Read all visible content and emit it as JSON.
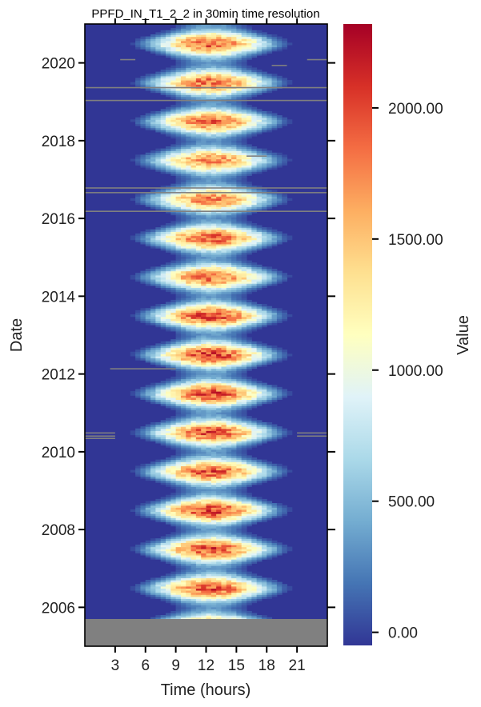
{
  "chart_data": {
    "type": "heatmap",
    "title": "PPFD_IN_T1_2_2 in 30min time resolution",
    "xlabel": "Time (hours)",
    "ylabel": "Date",
    "x_range": [
      0,
      24
    ],
    "x_ticks": [
      3,
      6,
      9,
      12,
      15,
      18,
      21
    ],
    "x_tick_labels": [
      "3",
      "6",
      "9",
      "12",
      "15",
      "18",
      "21"
    ],
    "y_range": [
      2005.0,
      2021.0
    ],
    "y_ticks": [
      2006,
      2008,
      2010,
      2012,
      2014,
      2016,
      2018,
      2020
    ],
    "y_tick_labels": [
      "2006",
      "2008",
      "2010",
      "2012",
      "2014",
      "2016",
      "2018",
      "2020"
    ],
    "missing_data_until": 2005.7,
    "yearly_peak_values": [
      {
        "year": 2006,
        "peak": 2100
      },
      {
        "year": 2007,
        "peak": 2150
      },
      {
        "year": 2008,
        "peak": 2200
      },
      {
        "year": 2009,
        "peak": 2100
      },
      {
        "year": 2010,
        "peak": 2100
      },
      {
        "year": 2011,
        "peak": 2150
      },
      {
        "year": 2012,
        "peak": 2200
      },
      {
        "year": 2013,
        "peak": 2150
      },
      {
        "year": 2014,
        "peak": 2000
      },
      {
        "year": 2015,
        "peak": 2100
      },
      {
        "year": 2016,
        "peak": 1900
      },
      {
        "year": 2017,
        "peak": 1850
      },
      {
        "year": 2018,
        "peak": 2000
      },
      {
        "year": 2019,
        "peak": 2000
      },
      {
        "year": 2020,
        "peak": 2050
      }
    ],
    "colorbar": {
      "label": "Value",
      "range": [
        -50,
        2320
      ],
      "ticks": [
        0,
        500,
        1000,
        1500,
        2000
      ],
      "tick_labels": [
        "0.00",
        "500.00",
        "1000.00",
        "1500.00",
        "2000.00"
      ],
      "colormap": "RdYlBu_r"
    }
  },
  "colors": {
    "missing": "#808080",
    "low": "#313695",
    "high": "#a50026"
  }
}
